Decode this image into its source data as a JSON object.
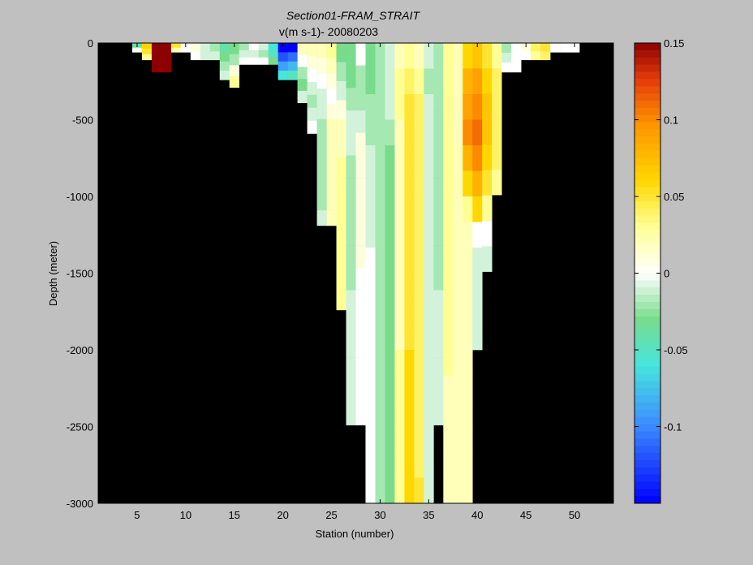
{
  "chart_data": {
    "type": "heatmap",
    "title": "Section01-FRAM_STRAIT",
    "subtitle": "v(m s-1)- 20080203",
    "xlabel": "Station (number)",
    "ylabel": "Depth (meter)",
    "xlim": [
      1,
      54
    ],
    "ylim": [
      -3000,
      0
    ],
    "xticks": [
      5,
      10,
      15,
      20,
      25,
      30,
      35,
      40,
      45,
      50
    ],
    "yticks": [
      0,
      -500,
      -1000,
      -1500,
      -2000,
      -2500,
      -3000
    ],
    "colorbar": {
      "min": -0.15,
      "max": 0.15,
      "ticks": [
        0.15,
        0.1,
        0.05,
        0,
        -0.05,
        -0.1
      ],
      "colormap": "jet-like (blue-cyan-green-white-yellow-orange-darkred)"
    },
    "background_color": "#000000",
    "station_columns": [
      {
        "station": 5,
        "bottom": -60,
        "values": [
          -0.04,
          0.0
        ]
      },
      {
        "station": 6,
        "bottom": -110,
        "values": [
          0.06,
          0.05,
          0.03
        ]
      },
      {
        "station": 7,
        "bottom": -190,
        "values": [
          0.15,
          0.15,
          0.15,
          0.15
        ]
      },
      {
        "station": 8,
        "bottom": -190,
        "values": [
          0.15,
          0.15,
          0.15,
          0.15
        ]
      },
      {
        "station": 9,
        "bottom": -60,
        "values": [
          0.05,
          0.02
        ]
      },
      {
        "station": 10,
        "bottom": -60,
        "values": [
          0.0,
          0.0
        ]
      },
      {
        "station": 11,
        "bottom": -110,
        "values": [
          0.01,
          0.0
        ]
      },
      {
        "station": 12,
        "bottom": -110,
        "values": [
          -0.01,
          -0.01
        ]
      },
      {
        "station": 13,
        "bottom": -110,
        "values": [
          -0.02,
          -0.01
        ]
      },
      {
        "station": 14,
        "bottom": -240,
        "values": [
          -0.04,
          -0.03,
          -0.02,
          -0.01
        ]
      },
      {
        "station": 15,
        "bottom": -290,
        "values": [
          -0.03,
          -0.02,
          0.01,
          0.03
        ]
      },
      {
        "station": 16,
        "bottom": -140,
        "values": [
          -0.02,
          -0.01,
          0.0
        ]
      },
      {
        "station": 17,
        "bottom": -140,
        "values": [
          0.0,
          -0.01,
          0.0
        ]
      },
      {
        "station": 18,
        "bottom": -140,
        "values": [
          -0.01,
          -0.02,
          0.0
        ]
      },
      {
        "station": 19,
        "bottom": -140,
        "values": [
          -0.06,
          -0.05,
          -0.03
        ]
      },
      {
        "station": 20,
        "bottom": -240,
        "values": [
          -0.15,
          -0.12,
          -0.09,
          -0.06
        ]
      },
      {
        "station": 21,
        "bottom": -240,
        "values": [
          -0.15,
          -0.11,
          -0.08,
          -0.05
        ]
      },
      {
        "station": 22,
        "bottom": -390,
        "values": [
          0.02,
          0.0,
          -0.02,
          -0.03,
          -0.01
        ]
      },
      {
        "station": 23,
        "bottom": -590,
        "values": [
          0.02,
          0.01,
          0.0,
          -0.01,
          -0.02,
          -0.01,
          0.0
        ]
      },
      {
        "station": 24,
        "bottom": -1190,
        "values": [
          0.02,
          0.01,
          0.0,
          -0.01,
          -0.01,
          -0.02,
          -0.02,
          -0.02,
          -0.02,
          -0.02,
          -0.02,
          -0.01
        ]
      },
      {
        "station": 25,
        "bottom": -1190,
        "values": [
          0.03,
          0.02,
          0.01,
          0.0,
          0.01,
          0.02,
          0.02,
          0.02,
          0.02,
          0.02,
          0.02,
          0.02
        ]
      },
      {
        "station": 26,
        "bottom": -1740,
        "values": [
          -0.03,
          -0.02,
          -0.01,
          0.01,
          0.02,
          0.02,
          0.03,
          0.03,
          0.03,
          0.03,
          0.03,
          0.03,
          0.03,
          0.03
        ]
      },
      {
        "station": 27,
        "bottom": -2490,
        "values": [
          -0.03,
          -0.03,
          -0.02,
          -0.01,
          -0.01,
          -0.02,
          -0.02,
          -0.02,
          -0.02,
          -0.02,
          -0.02,
          -0.01,
          -0.01,
          -0.01,
          -0.01,
          -0.01,
          -0.01
        ]
      },
      {
        "station": 28,
        "bottom": -2490,
        "values": [
          0.0,
          -0.02,
          -0.02,
          -0.01,
          0.01,
          0.01,
          0.01,
          0.01,
          0.01,
          0.01,
          0.0,
          0.0,
          0.0,
          0.0,
          0.0,
          0.0,
          0.0
        ]
      },
      {
        "station": 29,
        "bottom": -3000,
        "values": [
          -0.03,
          -0.03,
          -0.02,
          -0.02,
          -0.01,
          -0.01,
          -0.01,
          -0.01,
          0.0,
          0.0,
          0.0,
          0.0,
          0.0,
          0.0,
          0.0,
          0.0,
          0.0,
          0.0
        ]
      },
      {
        "station": 30,
        "bottom": -3000,
        "values": [
          -0.02,
          -0.02,
          -0.02,
          -0.02,
          -0.02,
          -0.02,
          -0.02,
          -0.02,
          -0.02,
          -0.02,
          -0.02,
          -0.02,
          -0.02,
          -0.02,
          -0.02,
          -0.02,
          -0.02,
          -0.02
        ]
      },
      {
        "station": 31,
        "bottom": -3000,
        "values": [
          -0.01,
          -0.01,
          -0.01,
          -0.02,
          -0.03,
          -0.03,
          -0.03,
          -0.03,
          -0.03,
          -0.03,
          -0.03,
          -0.03,
          -0.03,
          -0.03,
          -0.03,
          -0.03,
          -0.03,
          -0.03
        ]
      },
      {
        "station": 32,
        "bottom": -3000,
        "values": [
          0.02,
          0.03,
          0.03,
          0.02,
          0.02,
          0.02,
          0.02,
          0.02,
          0.02,
          0.02,
          0.02,
          0.02,
          0.03,
          0.03,
          0.03,
          0.03,
          0.03,
          0.03
        ]
      },
      {
        "station": 33,
        "bottom": -3000,
        "values": [
          0.03,
          0.04,
          0.05,
          0.05,
          0.05,
          0.05,
          0.05,
          0.05,
          0.05,
          0.05,
          0.05,
          0.05,
          0.06,
          0.06,
          0.06,
          0.06,
          0.06,
          0.06
        ]
      },
      {
        "station": 34,
        "bottom": -3000,
        "values": [
          0.02,
          0.03,
          0.04,
          0.04,
          0.04,
          0.04,
          0.04,
          0.04,
          0.04,
          0.04,
          0.04,
          0.04,
          0.04,
          0.04,
          0.04,
          0.04,
          0.04,
          0.05
        ]
      },
      {
        "station": 35,
        "bottom": -3000,
        "values": [
          -0.01,
          -0.02,
          -0.01,
          -0.01,
          -0.01,
          -0.01,
          -0.01,
          -0.01,
          -0.01,
          -0.01,
          -0.01,
          -0.01,
          -0.01,
          -0.01,
          -0.01,
          -0.01,
          -0.01,
          -0.01
        ]
      },
      {
        "station": 36,
        "bottom": -2490,
        "values": [
          -0.02,
          -0.02,
          -0.02,
          -0.02,
          -0.02,
          -0.02,
          -0.02,
          -0.02,
          -0.02,
          -0.02,
          -0.02,
          -0.01,
          -0.01,
          -0.01,
          -0.01,
          -0.01,
          -0.01
        ]
      },
      {
        "station": 37,
        "bottom": -3000,
        "values": [
          0.03,
          0.03,
          0.03,
          0.03,
          0.03,
          0.03,
          0.03,
          0.03,
          0.03,
          0.03,
          0.03,
          0.03,
          0.03,
          0.02,
          0.02,
          0.02,
          0.02,
          0.02
        ]
      },
      {
        "station": 38,
        "bottom": -3000,
        "values": [
          0.02,
          0.02,
          0.02,
          0.02,
          0.02,
          0.02,
          0.02,
          0.02,
          0.02,
          0.02,
          0.02,
          0.02,
          0.02,
          0.02,
          0.02,
          0.02,
          0.02,
          0.02
        ]
      },
      {
        "station": 39,
        "bottom": -3000,
        "values": [
          0.06,
          0.08,
          0.09,
          0.1,
          0.08,
          0.06,
          0.03,
          0.02,
          0.02,
          0.02,
          0.02,
          0.02,
          0.02,
          0.02,
          0.02,
          0.02,
          0.02,
          0.02
        ]
      },
      {
        "station": 40,
        "bottom": -2000,
        "values": [
          0.07,
          0.09,
          0.1,
          0.11,
          0.1,
          0.08,
          0.06,
          0.0,
          -0.01,
          -0.01,
          -0.01,
          -0.01
        ]
      },
      {
        "station": 41,
        "bottom": -1490,
        "values": [
          0.05,
          0.06,
          0.07,
          0.07,
          0.06,
          0.05,
          0.03,
          0.0,
          -0.01
        ]
      },
      {
        "station": 42,
        "bottom": -990,
        "values": [
          0.03,
          0.04,
          0.04,
          0.04,
          0.04,
          0.03
        ]
      },
      {
        "station": 43,
        "bottom": -190,
        "values": [
          -0.02,
          -0.01,
          0.0
        ]
      },
      {
        "station": 44,
        "bottom": -190,
        "values": [
          0.0,
          0.0
        ]
      },
      {
        "station": 45,
        "bottom": -110,
        "values": [
          0.01,
          0.0
        ]
      },
      {
        "station": 46,
        "bottom": -110,
        "values": [
          0.04,
          0.03
        ]
      },
      {
        "station": 47,
        "bottom": -110,
        "values": [
          0.05,
          0.04
        ]
      },
      {
        "station": 48,
        "bottom": -60,
        "values": [
          0.0,
          0.0
        ]
      },
      {
        "station": 49,
        "bottom": -60,
        "values": [
          0.0,
          0.0
        ]
      },
      {
        "station": 50,
        "bottom": -60,
        "values": [
          0.0
        ]
      }
    ]
  }
}
